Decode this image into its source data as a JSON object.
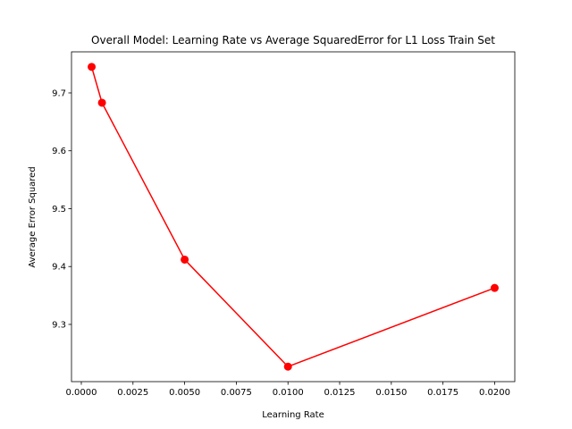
{
  "chart_data": {
    "type": "line",
    "title": "Overall Model: Learning Rate vs Average SquaredError for L1 Loss Train Set",
    "xlabel": "Learning Rate",
    "ylabel": "Average Error Squared",
    "x": [
      0.0005,
      0.001,
      0.005,
      0.01,
      0.02
    ],
    "series": [
      {
        "values": [
          9.745,
          9.683,
          9.412,
          9.227,
          9.363
        ],
        "color": "#ff0000",
        "marker": "circle"
      }
    ],
    "xlim": [
      -0.000475,
      0.020975
    ],
    "ylim": [
      9.2011,
      9.771
    ],
    "xticks": [
      0.0,
      0.0025,
      0.005,
      0.0075,
      0.01,
      0.0125,
      0.015,
      0.0175,
      0.02
    ],
    "xtick_labels": [
      "0.0000",
      "0.0025",
      "0.0050",
      "0.0075",
      "0.0100",
      "0.0125",
      "0.0150",
      "0.0175",
      "0.0200"
    ],
    "yticks": [
      9.3,
      9.4,
      9.5,
      9.6,
      9.7
    ],
    "ytick_labels": [
      "9.3",
      "9.4",
      "9.5",
      "9.6",
      "9.7"
    ],
    "grid": false,
    "legend": false
  }
}
